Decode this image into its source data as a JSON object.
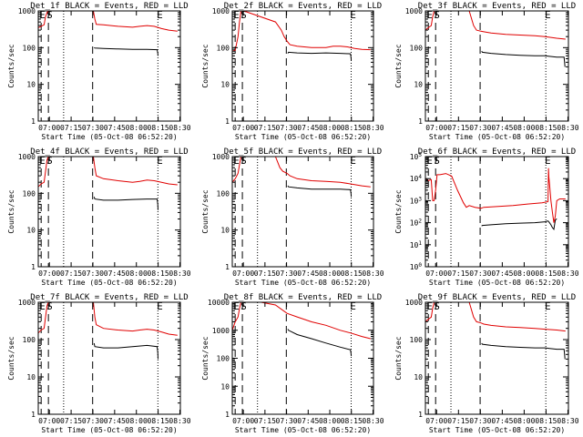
{
  "figure": {
    "xtick_labels": [
      "07:00",
      "07:15",
      "07:30",
      "07:45",
      "08:00",
      "08:15",
      "08:30"
    ],
    "xlabel": "Start Time (05-Oct-08 06:52:20)",
    "ylabel": "Counts/sec",
    "marker_letters": {
      "e1": "E",
      "s": "S",
      "e2": "E"
    },
    "colors": {
      "events": "#000000",
      "lld": "#e00000",
      "axes": "#000000",
      "background": "#ffffff"
    }
  },
  "chart_data": [
    {
      "type": "line",
      "title": "Det_1f BLACK = Events, RED = LLD",
      "xlabel": "Start Time (05-Oct-08 06:52:20)",
      "ylabel": "Counts/sec",
      "ytick_labels": [
        "1",
        "10",
        "100",
        "1000"
      ],
      "x_unit": "minutes after 06:52:20",
      "xlim": [
        0,
        98
      ],
      "ylim": [
        1,
        1000
      ],
      "log_y": true,
      "grid": false,
      "markers": {
        "e1": 2,
        "s": 7,
        "dotted_1": 17.5,
        "dashed": 37.5,
        "dotted_2": 82.5,
        "e2": 83
      },
      "series": [
        {
          "name": "Events",
          "color": "#000000",
          "x": [
            38.5,
            39,
            45,
            55,
            65,
            75,
            82,
            82.4,
            82.6
          ],
          "y": [
            100,
            98,
            95,
            92,
            90,
            90,
            88,
            70,
            60
          ]
        },
        {
          "name": "LLD",
          "color": "#e00000",
          "x": [
            0,
            2,
            4,
            5,
            6,
            7,
            8,
            9,
            38,
            39,
            40,
            45,
            55,
            65,
            70,
            75,
            80,
            85,
            90,
            96
          ],
          "y": [
            350,
            380,
            420,
            700,
            900,
            1000,
            1000,
            1000,
            1000,
            600,
            430,
            420,
            380,
            360,
            380,
            400,
            380,
            330,
            300,
            280
          ]
        }
      ]
    },
    {
      "type": "line",
      "title": "Det_2f BLACK = Events, RED = LLD",
      "xlabel": "Start Time (05-Oct-08 06:52:20)",
      "ylabel": "Counts/sec",
      "ytick_labels": [
        "1",
        "10",
        "100",
        "1000"
      ],
      "x_unit": "minutes after 06:52:20",
      "xlim": [
        0,
        98
      ],
      "ylim": [
        1,
        1000
      ],
      "log_y": true,
      "grid": false,
      "markers": {
        "e1": 2,
        "s": 7,
        "dotted_1": 17.5,
        "dashed": 37.5,
        "dotted_2": 82.5,
        "e2": 83
      },
      "series": [
        {
          "name": "Events",
          "color": "#000000",
          "x": [
            38.5,
            39,
            45,
            55,
            65,
            75,
            82,
            82.4,
            82.6
          ],
          "y": [
            70,
            75,
            72,
            70,
            72,
            70,
            68,
            55,
            45
          ]
        },
        {
          "name": "LLD",
          "color": "#e00000",
          "x": [
            0,
            2,
            4,
            5,
            6,
            7,
            8,
            30,
            34,
            36,
            38,
            40,
            45,
            55,
            65,
            70,
            75,
            80,
            85,
            90,
            96
          ],
          "y": [
            80,
            85,
            200,
            500,
            1000,
            1000,
            1000,
            500,
            300,
            200,
            150,
            120,
            110,
            100,
            100,
            110,
            110,
            105,
            95,
            90,
            88
          ]
        }
      ]
    },
    {
      "type": "line",
      "title": "Det_3f BLACK = Events, RED = LLD",
      "xlabel": "Start Time (05-Oct-08 06:52:20)",
      "ylabel": "Counts/sec",
      "ytick_labels": [
        "1",
        "10",
        "100",
        "1000"
      ],
      "x_unit": "minutes after 06:52:20",
      "xlim": [
        0,
        98
      ],
      "ylim": [
        1,
        1000
      ],
      "log_y": true,
      "grid": false,
      "markers": {
        "e1": 2,
        "s": 7,
        "dotted_1": 17.5,
        "dashed": 37.5,
        "dotted_2": 82.5,
        "e2": 83
      },
      "series": [
        {
          "name": "Events",
          "color": "#000000",
          "x": [
            38.5,
            39,
            45,
            55,
            65,
            75,
            82,
            85,
            90,
            95,
            95.4,
            95.6
          ],
          "y": [
            80,
            75,
            70,
            65,
            62,
            60,
            60,
            58,
            55,
            55,
            40,
            30
          ]
        },
        {
          "name": "LLD",
          "color": "#e00000",
          "x": [
            0,
            2,
            4,
            5,
            6,
            7,
            8,
            30,
            33,
            35,
            38,
            40,
            45,
            55,
            65,
            75,
            82,
            90,
            96
          ],
          "y": [
            300,
            350,
            400,
            700,
            1000,
            1000,
            1000,
            1000,
            400,
            300,
            280,
            270,
            250,
            230,
            220,
            210,
            200,
            180,
            170
          ]
        }
      ]
    },
    {
      "type": "line",
      "title": "Det_4f BLACK = Events, RED = LLD",
      "xlabel": "Start Time (05-Oct-08 06:52:20)",
      "ylabel": "Counts/sec",
      "ytick_labels": [
        "1",
        "10",
        "100",
        "1000"
      ],
      "x_unit": "minutes after 06:52:20",
      "xlim": [
        0,
        98
      ],
      "ylim": [
        1,
        1000
      ],
      "log_y": true,
      "grid": false,
      "markers": {
        "e1": 2,
        "s": 7,
        "dotted_1": 17.5,
        "dashed": 37.5,
        "dotted_2": 82.5,
        "e2": 83
      },
      "series": [
        {
          "name": "Events",
          "color": "#000000",
          "x": [
            38.5,
            39,
            45,
            55,
            65,
            75,
            82,
            82.4,
            82.6
          ],
          "y": [
            80,
            70,
            65,
            65,
            68,
            70,
            70,
            50,
            35
          ]
        },
        {
          "name": "LLD",
          "color": "#e00000",
          "x": [
            0,
            2,
            4,
            5,
            6,
            7,
            8,
            9,
            38,
            39,
            40,
            45,
            55,
            65,
            70,
            75,
            80,
            85,
            90,
            96
          ],
          "y": [
            150,
            180,
            200,
            400,
            800,
            1000,
            1000,
            1000,
            1000,
            500,
            300,
            250,
            220,
            200,
            210,
            230,
            220,
            200,
            180,
            170
          ]
        }
      ]
    },
    {
      "type": "line",
      "title": "Det_5f BLACK = Events, RED = LLD",
      "xlabel": "Start Time (05-Oct-08 06:52:20)",
      "ylabel": "Counts/sec",
      "ytick_labels": [
        "1",
        "10",
        "100",
        "1000"
      ],
      "x_unit": "minutes after 06:52:20",
      "xlim": [
        0,
        98
      ],
      "ylim": [
        1,
        1000
      ],
      "log_y": true,
      "grid": false,
      "markers": {
        "e1": 2,
        "s": 7,
        "dotted_1": 17.5,
        "dashed": 37.5,
        "dotted_2": 82.5,
        "e2": 83
      },
      "series": [
        {
          "name": "Events",
          "color": "#000000",
          "x": [
            38.5,
            39,
            45,
            55,
            65,
            75,
            82,
            82.4,
            82.6
          ],
          "y": [
            160,
            150,
            140,
            130,
            130,
            130,
            125,
            100,
            80
          ]
        },
        {
          "name": "LLD",
          "color": "#e00000",
          "x": [
            0,
            2,
            4,
            5,
            6,
            7,
            8,
            30,
            33,
            35,
            38,
            40,
            45,
            55,
            65,
            75,
            82,
            90,
            96
          ],
          "y": [
            200,
            250,
            350,
            600,
            1000,
            1000,
            1000,
            1000,
            500,
            400,
            350,
            300,
            250,
            220,
            210,
            200,
            180,
            160,
            150
          ]
        }
      ]
    },
    {
      "type": "line",
      "title": "Det_6f BLACK = Events, RED = LLD",
      "xlabel": "Start Time (05-Oct-08 06:52:20)",
      "ylabel": "Counts/sec",
      "ytick_labels": [
        "10^0",
        "10^1",
        "10^2",
        "10^3",
        "10^4",
        "10^5"
      ],
      "x_unit": "minutes after 06:52:20",
      "xlim": [
        0,
        98
      ],
      "ylim": [
        1,
        100000
      ],
      "log_y": true,
      "grid": false,
      "markers": {
        "e1": 2,
        "s": 7,
        "dotted_1": 17.5,
        "dashed": 37.5,
        "dotted_2": 82.5,
        "e2": 83
      },
      "series": [
        {
          "name": "Events",
          "color": "#000000",
          "x": [
            38.5,
            39,
            45,
            55,
            65,
            75,
            82,
            84,
            85,
            86,
            87,
            88,
            89,
            90
          ],
          "y": [
            70,
            75,
            80,
            90,
            95,
            100,
            110,
            120,
            100,
            80,
            60,
            50,
            130,
            150
          ]
        },
        {
          "name": "LLD",
          "color": "#e00000",
          "x": [
            0,
            2,
            4,
            5,
            6,
            7,
            8,
            10,
            14,
            18,
            22,
            26,
            28,
            30,
            34,
            38,
            40,
            50,
            60,
            70,
            80,
            84,
            84.3,
            84.6,
            85,
            86,
            87,
            88,
            89,
            90,
            92,
            96
          ],
          "y": [
            10000,
            8000,
            9000,
            1000,
            1000,
            3000,
            15000,
            15000,
            17000,
            13000,
            3000,
            800,
            500,
            600,
            500,
            450,
            500,
            550,
            600,
            700,
            800,
            900,
            30000,
            12000,
            6000,
            1000,
            300,
            100,
            200,
            1000,
            1200,
            1200
          ]
        }
      ]
    },
    {
      "type": "line",
      "title": "Det_7f BLACK = Events, RED = LLD",
      "xlabel": "Start Time (05-Oct-08 06:52:20)",
      "ylabel": "Counts/sec",
      "ytick_labels": [
        "1",
        "10",
        "100",
        "1000"
      ],
      "x_unit": "minutes after 06:52:20",
      "xlim": [
        0,
        98
      ],
      "ylim": [
        1,
        1000
      ],
      "log_y": true,
      "grid": false,
      "markers": {
        "e1": 2,
        "s": 7,
        "dotted_1": 17.5,
        "dashed": 37.5,
        "dotted_2": 82.5,
        "e2": 83
      },
      "series": [
        {
          "name": "Events",
          "color": "#000000",
          "x": [
            38.5,
            39,
            45,
            55,
            65,
            75,
            82,
            82.4,
            82.6
          ],
          "y": [
            80,
            65,
            60,
            60,
            65,
            70,
            65,
            45,
            30
          ]
        },
        {
          "name": "LLD",
          "color": "#e00000",
          "x": [
            0,
            2,
            4,
            5,
            6,
            7,
            8,
            9,
            38,
            39,
            40,
            45,
            55,
            65,
            70,
            75,
            80,
            85,
            90,
            96
          ],
          "y": [
            150,
            180,
            200,
            400,
            800,
            1000,
            1000,
            1000,
            1000,
            400,
            250,
            200,
            180,
            170,
            180,
            190,
            180,
            160,
            140,
            130
          ]
        }
      ]
    },
    {
      "type": "line",
      "title": "Det_8f BLACK = Events, RED = LLD",
      "xlabel": "Start Time (05-Oct-08 06:52:20)",
      "ylabel": "Counts/sec",
      "ytick_labels": [
        "1",
        "10",
        "100",
        "1000",
        "10000"
      ],
      "x_unit": "minutes after 06:52:20",
      "xlim": [
        0,
        98
      ],
      "ylim": [
        1,
        10000
      ],
      "log_y": true,
      "grid": false,
      "markers": {
        "e1": 2,
        "s": 7,
        "dotted_1": 17.5,
        "dashed": 37.5,
        "dotted_2": 82.5,
        "e2": 83
      },
      "series": [
        {
          "name": "Events",
          "color": "#000000",
          "x": [
            38.5,
            39,
            45,
            55,
            65,
            75,
            82,
            82.4,
            82.6
          ],
          "y": [
            1100,
            1000,
            700,
            500,
            350,
            250,
            200,
            150,
            120
          ]
        },
        {
          "name": "LLD",
          "color": "#e00000",
          "x": [
            0,
            2,
            4,
            5,
            6,
            7,
            8,
            20,
            30,
            38,
            45,
            55,
            65,
            75,
            82,
            90,
            96
          ],
          "y": [
            1000,
            2000,
            3000,
            6000,
            10000,
            10000,
            10000,
            10000,
            8000,
            4000,
            3000,
            2000,
            1500,
            1000,
            800,
            600,
            500
          ]
        }
      ]
    },
    {
      "type": "line",
      "title": "Det_9f BLACK = Events, RED = LLD",
      "xlabel": "Start Time (05-Oct-08 06:52:20)",
      "ylabel": "Counts/sec",
      "ytick_labels": [
        "1",
        "10",
        "100",
        "1000"
      ],
      "x_unit": "minutes after 06:52:20",
      "xlim": [
        0,
        98
      ],
      "ylim": [
        1,
        1000
      ],
      "log_y": true,
      "grid": false,
      "markers": {
        "e1": 2,
        "s": 7,
        "dotted_1": 17.5,
        "dashed": 37.5,
        "dotted_2": 82.5,
        "e2": 83
      },
      "series": [
        {
          "name": "Events",
          "color": "#000000",
          "x": [
            38.5,
            39,
            45,
            55,
            65,
            75,
            82,
            85,
            90,
            95,
            95.4,
            95.6
          ],
          "y": [
            80,
            75,
            70,
            65,
            62,
            60,
            60,
            58,
            55,
            55,
            40,
            30
          ]
        },
        {
          "name": "LLD",
          "color": "#e00000",
          "x": [
            0,
            2,
            4,
            5,
            6,
            7,
            8,
            30,
            33,
            35,
            38,
            40,
            45,
            55,
            65,
            75,
            82,
            90,
            96
          ],
          "y": [
            300,
            350,
            400,
            700,
            1000,
            1000,
            1000,
            1000,
            400,
            300,
            280,
            260,
            240,
            220,
            210,
            200,
            190,
            180,
            170
          ]
        }
      ]
    }
  ]
}
